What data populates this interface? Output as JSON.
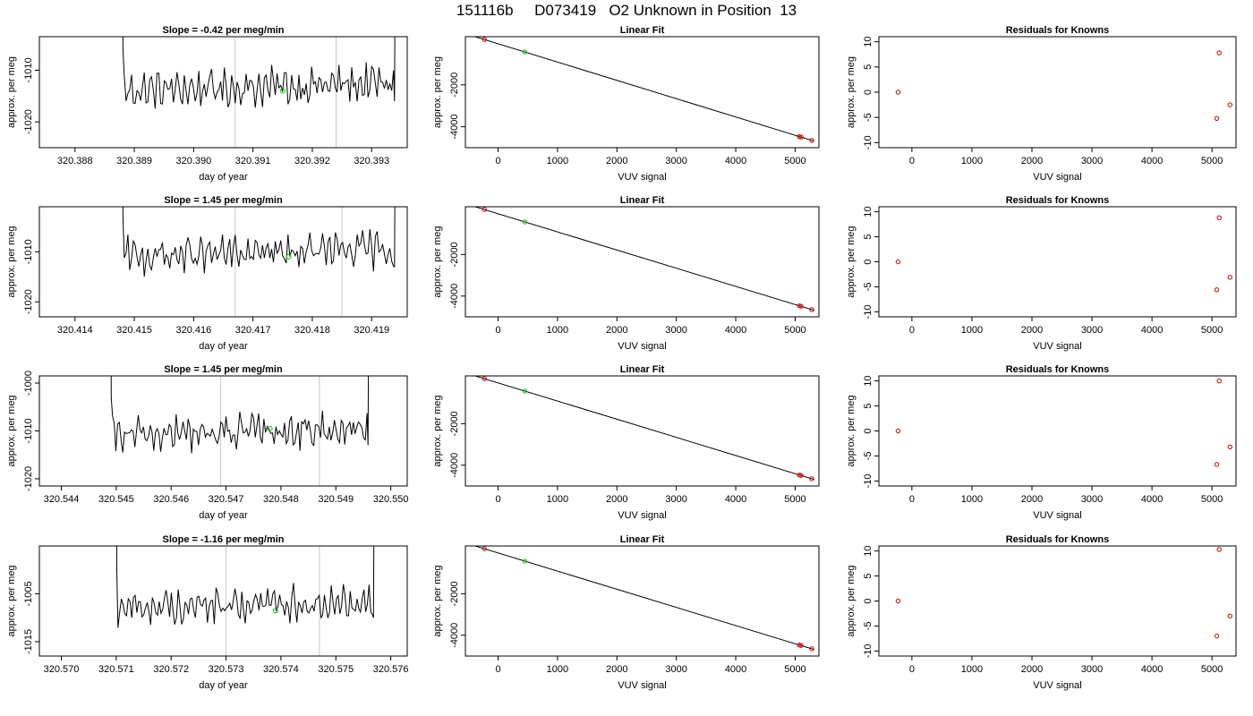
{
  "page_title": "151116b     D073419   O2 Unknown in Position  13",
  "colors": {
    "trace": "#000000",
    "vline": "#c8c8c8",
    "marker_green": "#00cc00",
    "marker_red": "#cc0000",
    "fit_line": "#000000"
  },
  "chart_data": [
    {
      "type": "line",
      "row": 0,
      "col": 0,
      "title": "Slope =  -0.42  per meg/min",
      "xlabel": "day of year",
      "ylabel": "approx. per meg",
      "xlim": [
        320.3874,
        320.3936
      ],
      "ylim": [
        -1025,
        -1003.5
      ],
      "xticks": [
        320.388,
        320.389,
        320.39,
        320.391,
        320.392,
        320.393
      ],
      "xtick_labels": [
        "320.388",
        "320.389",
        "320.390",
        "320.391",
        "320.392",
        "320.393"
      ],
      "yticks": [
        -1020,
        -1010
      ],
      "ytick_labels": [
        "-1020",
        "-1010"
      ],
      "vlines": [
        320.3907,
        320.3924
      ],
      "trace_start": 320.3888,
      "trace_end": 320.3934,
      "trace_base": -1014,
      "green_marker": {
        "x": 320.3915,
        "y": -1014
      }
    },
    {
      "type": "scatter",
      "row": 0,
      "col": 1,
      "title": "Linear Fit",
      "xlabel": "VUV signal",
      "ylabel": "approx. per meg",
      "xlim": [
        -550,
        5400
      ],
      "ylim": [
        -5000,
        300
      ],
      "xticks": [
        0,
        1000,
        2000,
        3000,
        4000,
        5000
      ],
      "xtick_labels": [
        "0",
        "1000",
        "2000",
        "3000",
        "4000",
        "5000"
      ],
      "yticks": [
        -4000,
        -2000
      ],
      "ytick_labels": [
        "-4000",
        "-2000"
      ],
      "fit_line": {
        "x0": -480,
        "x1": 5320,
        "slope": -0.874,
        "intercept": -37
      },
      "points_red": [
        {
          "x": -230,
          "y": 165
        },
        {
          "x": 5070,
          "y": -4473
        },
        {
          "x": 5100,
          "y": -4490
        },
        {
          "x": 5280,
          "y": -4653
        }
      ],
      "points_green": [
        {
          "x": 450,
          "y": -430
        }
      ]
    },
    {
      "type": "scatter",
      "row": 0,
      "col": 2,
      "title": "Residuals for Knowns",
      "xlabel": "VUV signal",
      "ylabel": "approx. per meg",
      "xlim": [
        -550,
        5400
      ],
      "ylim": [
        -11,
        11
      ],
      "xticks": [
        0,
        1000,
        2000,
        3000,
        4000,
        5000
      ],
      "xtick_labels": [
        "0",
        "1000",
        "2000",
        "3000",
        "4000",
        "5000"
      ],
      "yticks": [
        -10,
        -5,
        0,
        5,
        10
      ],
      "ytick_labels": [
        "-10",
        "-5",
        "0",
        "5",
        "10"
      ],
      "points_red": [
        {
          "x": -230,
          "y": 0
        },
        {
          "x": 5120,
          "y": 7.8
        },
        {
          "x": 5080,
          "y": -5.2
        },
        {
          "x": 5300,
          "y": -2.5
        }
      ]
    },
    {
      "type": "line",
      "row": 1,
      "col": 0,
      "title": "Slope =  1.45  per meg/min",
      "xlabel": "day of year",
      "ylabel": "approx. per meg",
      "xlim": [
        320.4134,
        320.4196
      ],
      "ylim": [
        -1023,
        -1001
      ],
      "xticks": [
        320.414,
        320.415,
        320.416,
        320.417,
        320.418,
        320.419
      ],
      "xtick_labels": [
        "320.414",
        "320.415",
        "320.416",
        "320.417",
        "320.418",
        "320.419"
      ],
      "yticks": [
        -1020,
        -1010
      ],
      "ytick_labels": [
        "-1020",
        "-1010"
      ],
      "vlines": [
        320.4167,
        320.4185
      ],
      "trace_start": 320.4148,
      "trace_end": 320.4194,
      "trace_base": -1011,
      "green_marker": {
        "x": 320.4176,
        "y": -1011
      }
    },
    {
      "type": "scatter",
      "row": 1,
      "col": 1,
      "title": "Linear Fit",
      "xlabel": "VUV signal",
      "ylabel": "approx. per meg",
      "xlim": [
        -550,
        5400
      ],
      "ylim": [
        -5000,
        300
      ],
      "xticks": [
        0,
        1000,
        2000,
        3000,
        4000,
        5000
      ],
      "xtick_labels": [
        "0",
        "1000",
        "2000",
        "3000",
        "4000",
        "5000"
      ],
      "yticks": [
        -4000,
        -2000
      ],
      "ytick_labels": [
        "-4000",
        "-2000"
      ],
      "fit_line": {
        "x0": -480,
        "x1": 5320,
        "slope": -0.874,
        "intercept": -37
      },
      "points_red": [
        {
          "x": -230,
          "y": 165
        },
        {
          "x": 5070,
          "y": -4473
        },
        {
          "x": 5100,
          "y": -4490
        },
        {
          "x": 5280,
          "y": -4653
        }
      ],
      "points_green": [
        {
          "x": 450,
          "y": -430
        }
      ]
    },
    {
      "type": "scatter",
      "row": 1,
      "col": 2,
      "title": "Residuals for Knowns",
      "xlabel": "VUV signal",
      "ylabel": "approx. per meg",
      "xlim": [
        -550,
        5400
      ],
      "ylim": [
        -11,
        11
      ],
      "xticks": [
        0,
        1000,
        2000,
        3000,
        4000,
        5000
      ],
      "xtick_labels": [
        "0",
        "1000",
        "2000",
        "3000",
        "4000",
        "5000"
      ],
      "yticks": [
        -10,
        -5,
        0,
        5,
        10
      ],
      "ytick_labels": [
        "-10",
        "-5",
        "0",
        "5",
        "10"
      ],
      "points_red": [
        {
          "x": -230,
          "y": 0
        },
        {
          "x": 5120,
          "y": 8.8
        },
        {
          "x": 5080,
          "y": -5.6
        },
        {
          "x": 5300,
          "y": -3.1
        }
      ]
    },
    {
      "type": "line",
      "row": 2,
      "col": 0,
      "title": "Slope =  1.45  per meg/min",
      "xlabel": "day of year",
      "ylabel": "approx. per meg",
      "xlim": [
        320.5436,
        320.5503
      ],
      "ylim": [
        -1021.5,
        -998.5
      ],
      "xticks": [
        320.544,
        320.545,
        320.546,
        320.547,
        320.548,
        320.549,
        320.55
      ],
      "xtick_labels": [
        "320.544",
        "320.545",
        "320.546",
        "320.547",
        "320.548",
        "320.549",
        "320.550"
      ],
      "yticks": [
        -1020,
        -1010,
        -1000
      ],
      "ytick_labels": [
        "-1020",
        "-1010",
        "-1000"
      ],
      "vlines": [
        320.5469,
        320.5487
      ],
      "trace_start": 320.5449,
      "trace_end": 320.5496,
      "trace_base": -1011,
      "green_marker": {
        "x": 320.5478,
        "y": -1009.5
      }
    },
    {
      "type": "scatter",
      "row": 2,
      "col": 1,
      "title": "Linear Fit",
      "xlabel": "VUV signal",
      "ylabel": "approx. per meg",
      "xlim": [
        -550,
        5400
      ],
      "ylim": [
        -5000,
        300
      ],
      "xticks": [
        0,
        1000,
        2000,
        3000,
        4000,
        5000
      ],
      "xtick_labels": [
        "0",
        "1000",
        "2000",
        "3000",
        "4000",
        "5000"
      ],
      "yticks": [
        -4000,
        -2000
      ],
      "ytick_labels": [
        "-4000",
        "-2000"
      ],
      "fit_line": {
        "x0": -480,
        "x1": 5320,
        "slope": -0.874,
        "intercept": -37
      },
      "points_red": [
        {
          "x": -230,
          "y": 165
        },
        {
          "x": 5070,
          "y": -4473
        },
        {
          "x": 5100,
          "y": -4490
        },
        {
          "x": 5280,
          "y": -4653
        }
      ],
      "points_green": [
        {
          "x": 450,
          "y": -430
        }
      ]
    },
    {
      "type": "scatter",
      "row": 2,
      "col": 2,
      "title": "Residuals for Knowns",
      "xlabel": "VUV signal",
      "ylabel": "approx. per meg",
      "xlim": [
        -550,
        5400
      ],
      "ylim": [
        -11,
        11
      ],
      "xticks": [
        0,
        1000,
        2000,
        3000,
        4000,
        5000
      ],
      "xtick_labels": [
        "0",
        "1000",
        "2000",
        "3000",
        "4000",
        "5000"
      ],
      "yticks": [
        -10,
        -5,
        0,
        5,
        10
      ],
      "ytick_labels": [
        "-10",
        "-5",
        "0",
        "5",
        "10"
      ],
      "points_red": [
        {
          "x": -230,
          "y": 0
        },
        {
          "x": 5120,
          "y": 10.0
        },
        {
          "x": 5080,
          "y": -6.7
        },
        {
          "x": 5300,
          "y": -3.2
        }
      ]
    },
    {
      "type": "line",
      "row": 3,
      "col": 0,
      "title": "Slope =  -1.16  per meg/min",
      "xlabel": "day of year",
      "ylabel": "approx. per meg",
      "xlim": [
        320.5696,
        320.5763
      ],
      "ylim": [
        -1018,
        -995
      ],
      "xticks": [
        320.57,
        320.571,
        320.572,
        320.573,
        320.574,
        320.575,
        320.576
      ],
      "xtick_labels": [
        "320.570",
        "320.571",
        "320.572",
        "320.573",
        "320.574",
        "320.575",
        "320.576"
      ],
      "yticks": [
        -1015,
        -1005
      ],
      "ytick_labels": [
        "-1015",
        "-1005"
      ],
      "vlines": [
        320.573,
        320.5747
      ],
      "trace_start": 320.571,
      "trace_end": 320.5757,
      "trace_base": -1008,
      "green_marker": {
        "x": 320.5739,
        "y": -1008.5
      }
    },
    {
      "type": "scatter",
      "row": 3,
      "col": 1,
      "title": "Linear Fit",
      "xlabel": "VUV signal",
      "ylabel": "approx. per meg",
      "xlim": [
        -550,
        5400
      ],
      "ylim": [
        -5000,
        300
      ],
      "xticks": [
        0,
        1000,
        2000,
        3000,
        4000,
        5000
      ],
      "xtick_labels": [
        "0",
        "1000",
        "2000",
        "3000",
        "4000",
        "5000"
      ],
      "yticks": [
        -4000,
        -2000
      ],
      "ytick_labels": [
        "-4000",
        "-2000"
      ],
      "fit_line": {
        "x0": -480,
        "x1": 5320,
        "slope": -0.874,
        "intercept": -37
      },
      "points_red": [
        {
          "x": -230,
          "y": 165
        },
        {
          "x": 5070,
          "y": -4473
        },
        {
          "x": 5100,
          "y": -4490
        },
        {
          "x": 5280,
          "y": -4653
        }
      ],
      "points_green": [
        {
          "x": 450,
          "y": -430
        }
      ]
    },
    {
      "type": "scatter",
      "row": 3,
      "col": 2,
      "title": "Residuals for Knowns",
      "xlabel": "VUV signal",
      "ylabel": "approx. per meg",
      "xlim": [
        -550,
        5400
      ],
      "ylim": [
        -11,
        11
      ],
      "xticks": [
        0,
        1000,
        2000,
        3000,
        4000,
        5000
      ],
      "xtick_labels": [
        "0",
        "1000",
        "2000",
        "3000",
        "4000",
        "5000"
      ],
      "yticks": [
        -10,
        -5,
        0,
        5,
        10
      ],
      "ytick_labels": [
        "-10",
        "-5",
        "0",
        "5",
        "10"
      ],
      "points_red": [
        {
          "x": -230,
          "y": 0
        },
        {
          "x": 5120,
          "y": 10.3
        },
        {
          "x": 5080,
          "y": -7.0
        },
        {
          "x": 5300,
          "y": -3.0
        }
      ]
    }
  ]
}
